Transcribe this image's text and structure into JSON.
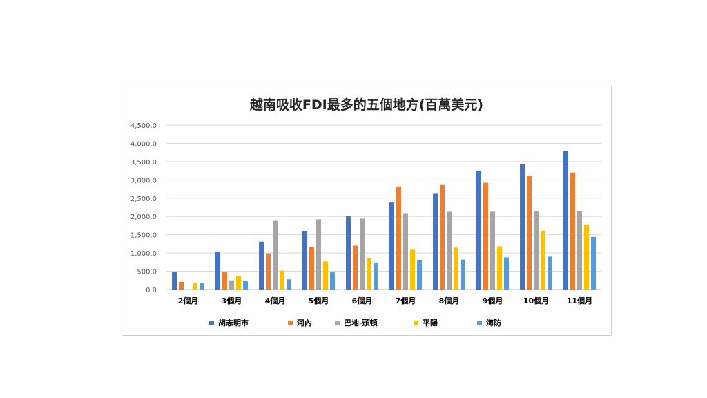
{
  "chart_data": {
    "type": "bar",
    "title": "越南吸收FDI最多的五個地方(百萬美元)",
    "xlabel": "",
    "ylabel": "",
    "ylim": [
      0,
      4500
    ],
    "yticks": [
      "0.0",
      "500.0",
      "1,000.0",
      "1,500.0",
      "2,000.0",
      "2,500.0",
      "3,000.0",
      "3,500.0",
      "4,000.0",
      "4,500.0"
    ],
    "grid": true,
    "legend_position": "bottom",
    "categories": [
      "2個月",
      "3個月",
      "4個月",
      "5個月",
      "6個月",
      "7個月",
      "8個月",
      "9個月",
      "10個月",
      "11個月"
    ],
    "series": [
      {
        "name": "胡志明市",
        "color": "#4472C4",
        "values": [
          480,
          1040,
          1310,
          1590,
          2010,
          2380,
          2620,
          3240,
          3430,
          3800
        ]
      },
      {
        "name": "河內",
        "color": "#ED7D31",
        "values": [
          210,
          480,
          990,
          1160,
          1200,
          2820,
          2860,
          2920,
          3120,
          3200
        ]
      },
      {
        "name": "巴地-頭頓",
        "color": "#A5A5A5",
        "values": [
          0,
          250,
          1880,
          1920,
          1940,
          2090,
          2130,
          2130,
          2140,
          2150
        ]
      },
      {
        "name": "平陽",
        "color": "#FFC000",
        "values": [
          190,
          360,
          520,
          770,
          860,
          1090,
          1150,
          1180,
          1610,
          1770
        ]
      },
      {
        "name": "海防",
        "color": "#5B9BD5",
        "values": [
          170,
          230,
          280,
          480,
          740,
          800,
          820,
          880,
          900,
          1440
        ]
      }
    ]
  }
}
